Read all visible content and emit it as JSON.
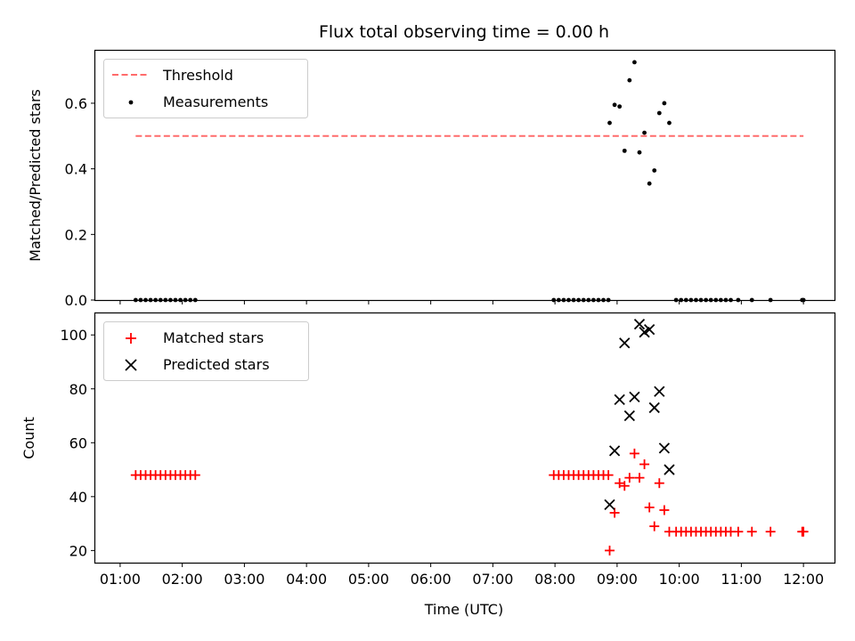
{
  "title": "Flux total observing time = 0.00 h",
  "top_panel": {
    "ylabel": "Matched/Predicted stars",
    "legend": {
      "threshold": "Threshold",
      "measurements": "Measurements"
    },
    "yticks": [
      "0.0",
      "0.2",
      "0.4",
      "0.6"
    ]
  },
  "bottom_panel": {
    "ylabel": "Count",
    "xlabel": "Time (UTC)",
    "legend": {
      "matched": "Matched stars",
      "predicted": "Predicted stars"
    },
    "yticks": [
      "20",
      "40",
      "60",
      "80",
      "100"
    ]
  },
  "xticks": [
    "01:00",
    "02:00",
    "03:00",
    "04:00",
    "05:00",
    "06:00",
    "07:00",
    "08:00",
    "09:00",
    "10:00",
    "11:00",
    "12:00"
  ],
  "colors": {
    "threshold": "#ff6b6b",
    "measurements": "#000000",
    "matched": "#ff0000",
    "predicted": "#000000"
  },
  "chart_data": [
    {
      "type": "scatter",
      "panel": "top",
      "ylim": [
        0,
        0.76
      ],
      "xlim_hours": [
        0.6,
        12.5
      ],
      "threshold": {
        "value": 0.5,
        "x_start": 1.25,
        "x_end": 12.0
      },
      "points": [
        [
          1.25,
          0
        ],
        [
          1.33,
          0
        ],
        [
          1.41,
          0
        ],
        [
          1.49,
          0
        ],
        [
          1.57,
          0
        ],
        [
          1.65,
          0
        ],
        [
          1.73,
          0
        ],
        [
          1.81,
          0
        ],
        [
          1.89,
          0
        ],
        [
          1.97,
          0
        ],
        [
          2.05,
          0
        ],
        [
          2.13,
          0
        ],
        [
          2.21,
          0
        ],
        [
          7.98,
          0
        ],
        [
          8.06,
          0
        ],
        [
          8.14,
          0
        ],
        [
          8.22,
          0
        ],
        [
          8.3,
          0
        ],
        [
          8.38,
          0
        ],
        [
          8.46,
          0
        ],
        [
          8.54,
          0
        ],
        [
          8.62,
          0
        ],
        [
          8.7,
          0
        ],
        [
          8.78,
          0
        ],
        [
          8.86,
          0
        ],
        [
          8.88,
          0.54
        ],
        [
          8.96,
          0.595
        ],
        [
          9.04,
          0.59
        ],
        [
          9.12,
          0.455
        ],
        [
          9.2,
          0.67
        ],
        [
          9.28,
          0.725
        ],
        [
          9.36,
          0.45
        ],
        [
          9.44,
          0.51
        ],
        [
          9.52,
          0.355
        ],
        [
          9.6,
          0.395
        ],
        [
          9.68,
          0.57
        ],
        [
          9.76,
          0.6
        ],
        [
          9.84,
          0.54
        ],
        [
          9.95,
          0
        ],
        [
          10.03,
          0
        ],
        [
          10.11,
          0
        ],
        [
          10.19,
          0
        ],
        [
          10.27,
          0
        ],
        [
          10.35,
          0
        ],
        [
          10.43,
          0
        ],
        [
          10.51,
          0
        ],
        [
          10.59,
          0
        ],
        [
          10.67,
          0
        ],
        [
          10.75,
          0
        ],
        [
          10.83,
          0
        ],
        [
          10.95,
          0
        ],
        [
          11.17,
          0
        ],
        [
          11.47,
          0
        ],
        [
          11.98,
          0
        ],
        [
          12.0,
          0
        ]
      ]
    },
    {
      "type": "scatter",
      "panel": "bottom",
      "ylim": [
        15.5,
        108
      ],
      "xlim_hours": [
        0.6,
        12.5
      ],
      "series": [
        {
          "name": "Matched stars",
          "marker": "+",
          "points": [
            [
              1.25,
              48
            ],
            [
              1.33,
              48
            ],
            [
              1.41,
              48
            ],
            [
              1.49,
              48
            ],
            [
              1.57,
              48
            ],
            [
              1.65,
              48
            ],
            [
              1.73,
              48
            ],
            [
              1.81,
              48
            ],
            [
              1.89,
              48
            ],
            [
              1.97,
              48
            ],
            [
              2.05,
              48
            ],
            [
              2.13,
              48
            ],
            [
              2.21,
              48
            ],
            [
              7.98,
              48
            ],
            [
              8.06,
              48
            ],
            [
              8.14,
              48
            ],
            [
              8.22,
              48
            ],
            [
              8.3,
              48
            ],
            [
              8.38,
              48
            ],
            [
              8.46,
              48
            ],
            [
              8.54,
              48
            ],
            [
              8.62,
              48
            ],
            [
              8.7,
              48
            ],
            [
              8.78,
              48
            ],
            [
              8.86,
              48
            ],
            [
              8.88,
              20
            ],
            [
              8.96,
              34
            ],
            [
              9.04,
              45
            ],
            [
              9.12,
              44
            ],
            [
              9.2,
              47
            ],
            [
              9.28,
              56
            ],
            [
              9.36,
              47
            ],
            [
              9.44,
              52
            ],
            [
              9.52,
              36
            ],
            [
              9.6,
              29
            ],
            [
              9.68,
              45
            ],
            [
              9.76,
              35
            ],
            [
              9.84,
              27
            ],
            [
              9.95,
              27
            ],
            [
              10.03,
              27
            ],
            [
              10.11,
              27
            ],
            [
              10.19,
              27
            ],
            [
              10.27,
              27
            ],
            [
              10.35,
              27
            ],
            [
              10.43,
              27
            ],
            [
              10.51,
              27
            ],
            [
              10.59,
              27
            ],
            [
              10.67,
              27
            ],
            [
              10.75,
              27
            ],
            [
              10.83,
              27
            ],
            [
              10.95,
              27
            ],
            [
              11.17,
              27
            ],
            [
              11.47,
              27
            ],
            [
              11.98,
              27
            ],
            [
              12.0,
              27
            ]
          ]
        },
        {
          "name": "Predicted stars",
          "marker": "x",
          "points": [
            [
              8.88,
              37
            ],
            [
              8.96,
              57
            ],
            [
              9.04,
              76
            ],
            [
              9.12,
              97
            ],
            [
              9.2,
              70
            ],
            [
              9.28,
              77
            ],
            [
              9.36,
              104
            ],
            [
              9.44,
              101
            ],
            [
              9.52,
              102
            ],
            [
              9.6,
              73
            ],
            [
              9.68,
              79
            ],
            [
              9.76,
              58
            ],
            [
              9.84,
              50
            ]
          ]
        }
      ]
    }
  ]
}
